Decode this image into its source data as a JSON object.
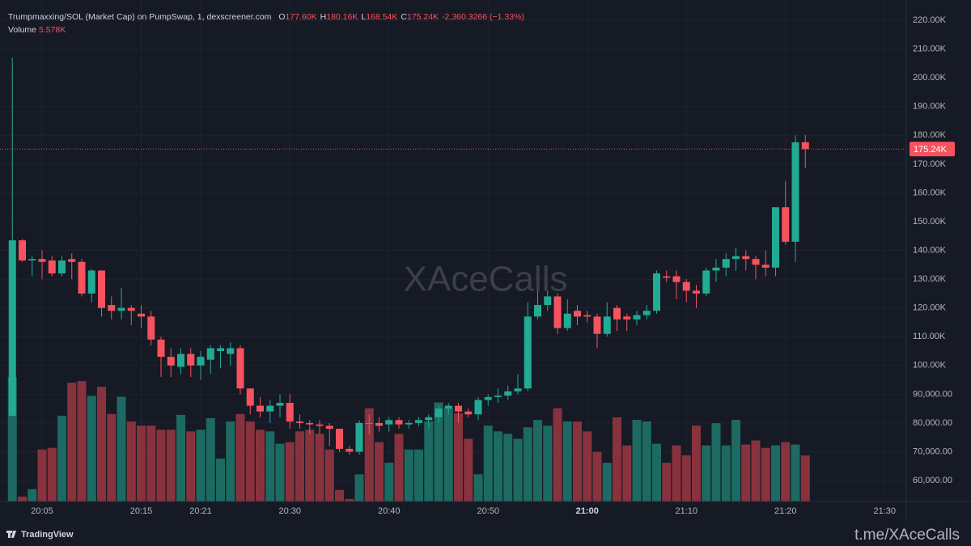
{
  "chart_data": {
    "type": "candlestick",
    "title": "Trumpmaxxing/SOL (Market Cap) on PumpSwap, 1, dexscreener.com",
    "ohlc_legend": [
      {
        "key": "O",
        "value": 177600,
        "label": "177.60K"
      },
      {
        "key": "H",
        "value": 180160,
        "label": "180.16K"
      },
      {
        "key": "L",
        "value": 168540,
        "label": "168.54K"
      },
      {
        "key": "C",
        "value": 175240,
        "label": "175.24K"
      }
    ],
    "change": "-2,360.3266 (−1.33%)",
    "volume_legend": {
      "key": "Volume",
      "value": 5578,
      "label": "5.578K"
    },
    "watermark": "XAceCalls",
    "footer_brand": "TradingView",
    "footer_link": "t.me/XAceCalls",
    "last_price": {
      "value": 175240,
      "label": "175.24K"
    },
    "x": [
      "20:02",
      "20:03",
      "20:04",
      "20:05",
      "20:06",
      "20:07",
      "20:08",
      "20:09",
      "20:10",
      "20:11",
      "20:12",
      "20:13",
      "20:14",
      "20:15",
      "20:16",
      "20:17",
      "20:18",
      "20:19",
      "20:20",
      "20:21",
      "20:22",
      "20:23",
      "20:24",
      "20:25",
      "20:26",
      "20:27",
      "20:28",
      "20:29",
      "20:30",
      "20:31",
      "20:32",
      "20:33",
      "20:34",
      "20:35",
      "20:36",
      "20:37",
      "20:38",
      "20:39",
      "20:40",
      "20:41",
      "20:42",
      "20:43",
      "20:44",
      "20:45",
      "20:46",
      "20:47",
      "20:48",
      "20:49",
      "20:50",
      "20:51",
      "20:52",
      "20:53",
      "20:54",
      "20:55",
      "20:56",
      "20:57",
      "20:58",
      "20:59",
      "21:00",
      "21:01",
      "21:02",
      "21:03",
      "21:04",
      "21:05",
      "21:06",
      "21:07",
      "21:08",
      "21:09",
      "21:10",
      "21:11",
      "21:12",
      "21:13",
      "21:14",
      "21:15",
      "21:16",
      "21:17",
      "21:18",
      "21:19",
      "21:20",
      "21:21",
      "21:22"
    ],
    "open": [
      82500,
      143500,
      136500,
      137000,
      136500,
      132000,
      137000,
      136000,
      125000,
      133000,
      121000,
      119000,
      120000,
      118000,
      117000,
      109000,
      103000,
      99500,
      104000,
      100000,
      102000,
      105000,
      104000,
      106000,
      92000,
      86000,
      84000,
      86000,
      87000,
      80500,
      80000,
      79500,
      79000,
      78000,
      71000,
      70000,
      80000,
      80000,
      79500,
      81000,
      79500,
      80000,
      81000,
      82000,
      85000,
      86000,
      84000,
      83000,
      88000,
      89000,
      89500,
      91000,
      92000,
      117000,
      121000,
      124000,
      113000,
      119000,
      117500,
      117000,
      111000,
      120000,
      117000,
      116000,
      117500,
      119000,
      131000,
      131000,
      129000,
      126000,
      125000,
      133000,
      134000,
      137000,
      138000,
      137000,
      135000,
      134000,
      155000,
      143000,
      177600
    ],
    "high": [
      207000,
      144000,
      138000,
      140000,
      138000,
      138000,
      139000,
      137000,
      133500,
      133000,
      124000,
      127000,
      121000,
      121000,
      119000,
      110000,
      106000,
      106000,
      106000,
      105000,
      107000,
      107000,
      108000,
      107000,
      92000,
      89000,
      88000,
      90000,
      90000,
      83000,
      81000,
      81000,
      80000,
      78000,
      72000,
      81000,
      83000,
      82000,
      82000,
      82000,
      81000,
      82000,
      83000,
      86000,
      87000,
      87000,
      85000,
      89000,
      90000,
      92000,
      93000,
      97000,
      122000,
      126000,
      126000,
      125000,
      123000,
      121000,
      119000,
      118000,
      122000,
      121000,
      118000,
      119000,
      121000,
      133000,
      133000,
      133000,
      130000,
      128000,
      134000,
      137000,
      139000,
      141000,
      140000,
      138000,
      140000,
      155000,
      164000,
      180000,
      180160
    ],
    "low": [
      82500,
      136000,
      131000,
      130000,
      131000,
      131000,
      130000,
      124000,
      122000,
      117000,
      116000,
      116000,
      114000,
      113000,
      107000,
      96000,
      96000,
      97000,
      96000,
      95000,
      97000,
      99000,
      100000,
      90000,
      83000,
      82000,
      80000,
      82000,
      78000,
      78000,
      76000,
      76000,
      72000,
      70000,
      69000,
      69000,
      76000,
      77000,
      77000,
      78000,
      78000,
      79000,
      78000,
      80000,
      83000,
      80000,
      82000,
      81000,
      86000,
      87000,
      88000,
      90000,
      91000,
      116000,
      119000,
      111000,
      112000,
      114000,
      115000,
      106000,
      110000,
      112000,
      112000,
      114000,
      116000,
      118000,
      129000,
      123000,
      122000,
      120000,
      124000,
      129000,
      131000,
      133000,
      133000,
      130000,
      131000,
      131000,
      142000,
      136000,
      168540
    ],
    "close": [
      143500,
      136500,
      137000,
      136000,
      132000,
      136500,
      136000,
      125000,
      133000,
      120000,
      119000,
      120000,
      119000,
      117000,
      109000,
      103000,
      100000,
      104000,
      100000,
      103000,
      106000,
      106000,
      106000,
      92000,
      86000,
      84000,
      86000,
      87000,
      80500,
      80000,
      79500,
      79000,
      78000,
      71000,
      70000,
      80000,
      79800,
      79000,
      81000,
      79500,
      80000,
      81000,
      82000,
      85000,
      86000,
      84000,
      83000,
      88000,
      89000,
      89500,
      91000,
      92000,
      117000,
      121000,
      124000,
      113000,
      118000,
      117000,
      117000,
      111000,
      117000,
      116000,
      116000,
      117500,
      119000,
      132000,
      130500,
      129000,
      126000,
      125000,
      133000,
      134000,
      137000,
      138000,
      137000,
      135000,
      134000,
      155000,
      143000,
      177600,
      175240
    ],
    "volume": [
      15100,
      600,
      1500,
      6300,
      6500,
      10400,
      14400,
      14600,
      12800,
      13900,
      10600,
      12700,
      9700,
      9200,
      9200,
      8700,
      8700,
      10500,
      8500,
      8700,
      10100,
      5200,
      9700,
      10600,
      9700,
      8700,
      8500,
      7000,
      7200,
      8500,
      8700,
      8200,
      6300,
      1400,
      300,
      3300,
      11300,
      7200,
      4700,
      8200,
      6300,
      6300,
      9700,
      12000,
      11300,
      10700,
      7600,
      3300,
      9200,
      8500,
      8200,
      7600,
      9000,
      9900,
      9200,
      11300,
      9700,
      9700,
      8500,
      6000,
      4700,
      10200,
      6800,
      9900,
      9700,
      7000,
      4700,
      6800,
      5600,
      9200,
      6800,
      9500,
      6800,
      9900,
      6900,
      7400,
      6500,
      6800,
      7200,
      6900,
      5578
    ],
    "up_color": "#22ab94",
    "down_color": "#f7525f",
    "volume_up_color": "#1c6a61",
    "volume_down_color": "#88323e",
    "ylim": [
      52700,
      224800
    ],
    "y2lim": [
      0,
      60000
    ],
    "yticks": [
      {
        "value": 220000,
        "label": "220.00K"
      },
      {
        "value": 210000,
        "label": "210.00K"
      },
      {
        "value": 200000,
        "label": "200.00K"
      },
      {
        "value": 190000,
        "label": "190.00K"
      },
      {
        "value": 180000,
        "label": "180.00K"
      },
      {
        "value": 170000,
        "label": "170.00K"
      },
      {
        "value": 160000,
        "label": "160.00K"
      },
      {
        "value": 150000,
        "label": "150.00K"
      },
      {
        "value": 140000,
        "label": "140.00K"
      },
      {
        "value": 130000,
        "label": "130.00K"
      },
      {
        "value": 120000,
        "label": "120.00K"
      },
      {
        "value": 110000,
        "label": "110.00K"
      },
      {
        "value": 100000,
        "label": "100.00K"
      },
      {
        "value": 90000,
        "label": "90,000.00"
      },
      {
        "value": 80000,
        "label": "80,000.00"
      },
      {
        "value": 70000,
        "label": "70,000.00"
      },
      {
        "value": 60000,
        "label": "60,000.00"
      }
    ],
    "xticks": [
      "20:05",
      "20:15",
      "20:21",
      "20:30",
      "20:40",
      "20:50",
      "21:00",
      "21:10",
      "21:20",
      "21:30"
    ],
    "grid": true
  }
}
